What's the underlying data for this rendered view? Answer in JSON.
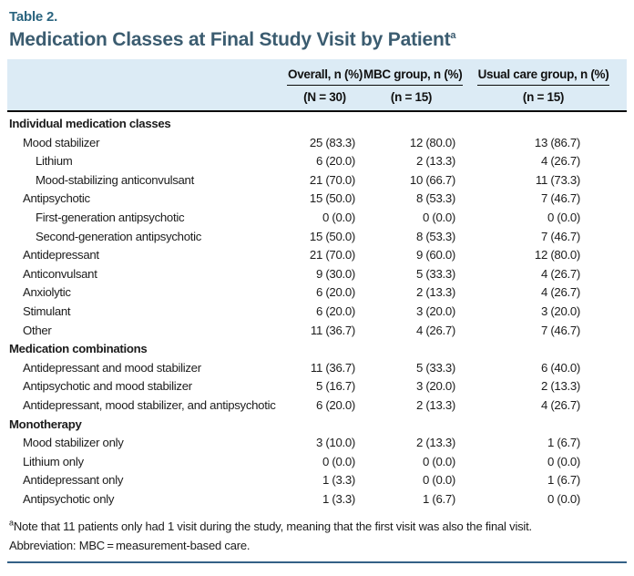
{
  "header": {
    "table_label": "Table 2.",
    "title": "Medication Classes at Final Study Visit by Patient",
    "title_superscript": "a"
  },
  "table": {
    "columns": [
      {
        "label": "Overall, n (%)",
        "sub": "(N = 30)"
      },
      {
        "label": "MBC group, n (%)",
        "sub": "(n = 15)"
      },
      {
        "label": "Usual care group, n (%)",
        "sub": "(n = 15)"
      }
    ],
    "rows": [
      {
        "label": "Individual medication classes",
        "indent": 0,
        "section": true,
        "values": [
          "",
          "",
          ""
        ]
      },
      {
        "label": "Mood stabilizer",
        "indent": 1,
        "section": false,
        "values": [
          "25 (83.3)",
          "12 (80.0)",
          "13 (86.7)"
        ]
      },
      {
        "label": "Lithium",
        "indent": 2,
        "section": false,
        "values": [
          "6 (20.0)",
          "2 (13.3)",
          "4 (26.7)"
        ]
      },
      {
        "label": "Mood-stabilizing anticonvulsant",
        "indent": 2,
        "section": false,
        "values": [
          "21 (70.0)",
          "10 (66.7)",
          "11 (73.3)"
        ]
      },
      {
        "label": "Antipsychotic",
        "indent": 1,
        "section": false,
        "values": [
          "15 (50.0)",
          "8 (53.3)",
          "7 (46.7)"
        ]
      },
      {
        "label": "First-generation antipsychotic",
        "indent": 2,
        "section": false,
        "values": [
          "0 (0.0)",
          "0 (0.0)",
          "0 (0.0)"
        ]
      },
      {
        "label": "Second-generation antipsychotic",
        "indent": 2,
        "section": false,
        "values": [
          "15 (50.0)",
          "8 (53.3)",
          "7 (46.7)"
        ]
      },
      {
        "label": "Antidepressant",
        "indent": 1,
        "section": false,
        "values": [
          "21 (70.0)",
          "9 (60.0)",
          "12 (80.0)"
        ]
      },
      {
        "label": "Anticonvulsant",
        "indent": 1,
        "section": false,
        "values": [
          "9 (30.0)",
          "5 (33.3)",
          "4 (26.7)"
        ]
      },
      {
        "label": "Anxiolytic",
        "indent": 1,
        "section": false,
        "values": [
          "6 (20.0)",
          "2 (13.3)",
          "4 (26.7)"
        ]
      },
      {
        "label": "Stimulant",
        "indent": 1,
        "section": false,
        "values": [
          "6 (20.0)",
          "3 (20.0)",
          "3 (20.0)"
        ]
      },
      {
        "label": "Other",
        "indent": 1,
        "section": false,
        "values": [
          "11 (36.7)",
          "4 (26.7)",
          "7 (46.7)"
        ]
      },
      {
        "label": "Medication combinations",
        "indent": 0,
        "section": true,
        "values": [
          "",
          "",
          ""
        ]
      },
      {
        "label": "Antidepressant and mood stabilizer",
        "indent": 1,
        "section": false,
        "values": [
          "11 (36.7)",
          "5 (33.3)",
          "6 (40.0)"
        ]
      },
      {
        "label": "Antipsychotic and mood stabilizer",
        "indent": 1,
        "section": false,
        "values": [
          "5 (16.7)",
          "3 (20.0)",
          "2 (13.3)"
        ]
      },
      {
        "label": "Antidepressant, mood stabilizer, and antipsychotic",
        "indent": 1,
        "section": false,
        "values": [
          "6 (20.0)",
          "2 (13.3)",
          "4 (26.7)"
        ]
      },
      {
        "label": "Monotherapy",
        "indent": 0,
        "section": true,
        "values": [
          "",
          "",
          ""
        ]
      },
      {
        "label": "Mood stabilizer only",
        "indent": 1,
        "section": false,
        "values": [
          "3 (10.0)",
          "2 (13.3)",
          "1 (6.7)"
        ]
      },
      {
        "label": "Lithium only",
        "indent": 1,
        "section": false,
        "values": [
          "0 (0.0)",
          "0 (0.0)",
          "0 (0.0)"
        ]
      },
      {
        "label": "Antidepressant only",
        "indent": 1,
        "section": false,
        "values": [
          "1 (3.3)",
          "0 (0.0)",
          "1 (6.7)"
        ]
      },
      {
        "label": "Antipsychotic only",
        "indent": 1,
        "section": false,
        "values": [
          "1 (3.3)",
          "1 (6.7)",
          "0 (0.0)"
        ]
      }
    ]
  },
  "footnotes": {
    "note_marker": "a",
    "note": "Note that 11 patients only had 1 visit during the study, meaning that the first visit was also the final visit.",
    "abbreviation": "Abbreviation: MBC = measurement-based care."
  },
  "colors": {
    "table_label_color": "#2a647f",
    "title_color": "#3b5c70",
    "header_bg": "#dcebf5",
    "rule_dark": "#0a0a0a",
    "bottom_rule": "#336086",
    "body_text": "#1c1c1c"
  }
}
